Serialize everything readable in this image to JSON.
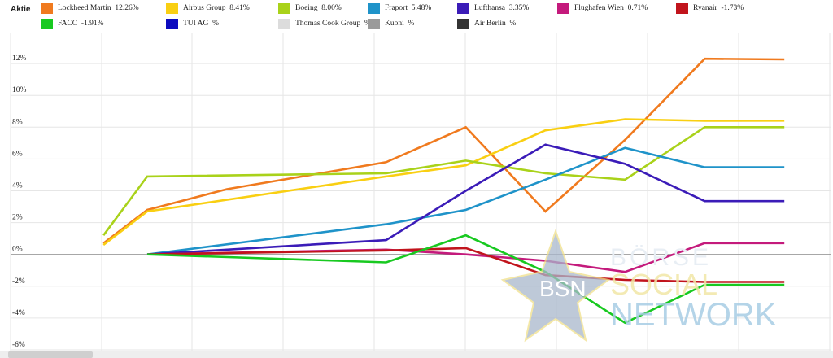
{
  "legend": {
    "title": "Aktie",
    "items": [
      {
        "name": "Lockheed Martin",
        "value": "12.26%",
        "color": "#f07a1e"
      },
      {
        "name": "Airbus Group",
        "value": "8.41%",
        "color": "#f9cf12"
      },
      {
        "name": "Boeing",
        "value": "8.00%",
        "color": "#a9d21a"
      },
      {
        "name": "Fraport",
        "value": "5.48%",
        "color": "#1f93c9"
      },
      {
        "name": "Lufthansa",
        "value": "3.35%",
        "color": "#3b1cb8"
      },
      {
        "name": "Flughafen Wien",
        "value": "0.71%",
        "color": "#c41a7c"
      },
      {
        "name": "Ryanair",
        "value": "-1.73%",
        "color": "#c1141c"
      },
      {
        "name": "FACC",
        "value": "-1.91%",
        "color": "#18c920"
      },
      {
        "name": "TUI AG",
        "value": "%",
        "color": "#0c0bbf"
      },
      {
        "name": "Thomas Cook Group",
        "value": "%",
        "color": "#dcdcdc"
      },
      {
        "name": "Kuoni",
        "value": "%",
        "color": "#9a9a9a"
      },
      {
        "name": "Air Berlin",
        "value": "%",
        "color": "#333333"
      }
    ]
  },
  "watermark": {
    "logo_text": "BSN",
    "line1": "BÖRSE",
    "line2": "SOCIAL",
    "line3": "NETWORK",
    "star_color": "#a9b7cc",
    "accent_color": "#f0e08a"
  },
  "chart_data": {
    "type": "line",
    "x": [
      0,
      1,
      2,
      3,
      4,
      5,
      6,
      7,
      8
    ],
    "ylim": [
      -6,
      14
    ],
    "yticks": [
      -6,
      -4,
      -2,
      0,
      2,
      4,
      6,
      8,
      10,
      12
    ],
    "ytick_labels": [
      "-6%",
      "-4%",
      "-2%",
      "0%",
      "2%",
      "4%",
      "6%",
      "8%",
      "10%",
      "12%"
    ],
    "grid": true,
    "series": [
      {
        "name": "Lockheed Martin",
        "color": "#f07a1e",
        "x": [
          -0.55,
          0,
          1,
          3,
          4,
          5,
          6,
          7,
          8
        ],
        "values": [
          0.7,
          2.8,
          4.1,
          5.8,
          8.0,
          2.7,
          7.2,
          12.3,
          12.26
        ]
      },
      {
        "name": "Airbus Group",
        "color": "#f9cf12",
        "x": [
          -0.55,
          0,
          3,
          4,
          5,
          6,
          7,
          8
        ],
        "values": [
          0.6,
          2.7,
          4.9,
          5.6,
          7.8,
          8.5,
          8.4,
          8.41
        ]
      },
      {
        "name": "Boeing",
        "color": "#a9d21a",
        "x": [
          -0.55,
          0,
          3,
          4,
          5,
          6,
          7,
          8
        ],
        "values": [
          1.2,
          4.9,
          5.1,
          5.9,
          5.1,
          4.7,
          8.0,
          8.0
        ]
      },
      {
        "name": "Fraport",
        "color": "#1f93c9",
        "x": [
          0,
          3,
          4,
          5,
          6,
          7,
          8
        ],
        "values": [
          0,
          1.9,
          2.8,
          4.7,
          6.7,
          5.48,
          5.48
        ]
      },
      {
        "name": "Lufthansa",
        "color": "#3b1cb8",
        "x": [
          0,
          3,
          4,
          5,
          6,
          7,
          8
        ],
        "values": [
          0,
          0.9,
          4.0,
          6.9,
          5.7,
          3.35,
          3.35
        ]
      },
      {
        "name": "Flughafen Wien",
        "color": "#c41a7c",
        "x": [
          0,
          3,
          4,
          5,
          6,
          7,
          8
        ],
        "values": [
          0,
          0.3,
          0.0,
          -0.4,
          -1.1,
          0.71,
          0.71
        ]
      },
      {
        "name": "Ryanair",
        "color": "#c1141c",
        "x": [
          0,
          3,
          4,
          5,
          6,
          7,
          8
        ],
        "values": [
          0,
          0.25,
          0.4,
          -1.3,
          -1.6,
          -1.73,
          -1.73
        ]
      },
      {
        "name": "FACC",
        "color": "#18c920",
        "x": [
          0,
          3,
          4,
          5,
          6,
          7,
          8
        ],
        "values": [
          0,
          -0.5,
          1.2,
          -1.1,
          -4.3,
          -1.91,
          -1.91
        ]
      }
    ]
  }
}
